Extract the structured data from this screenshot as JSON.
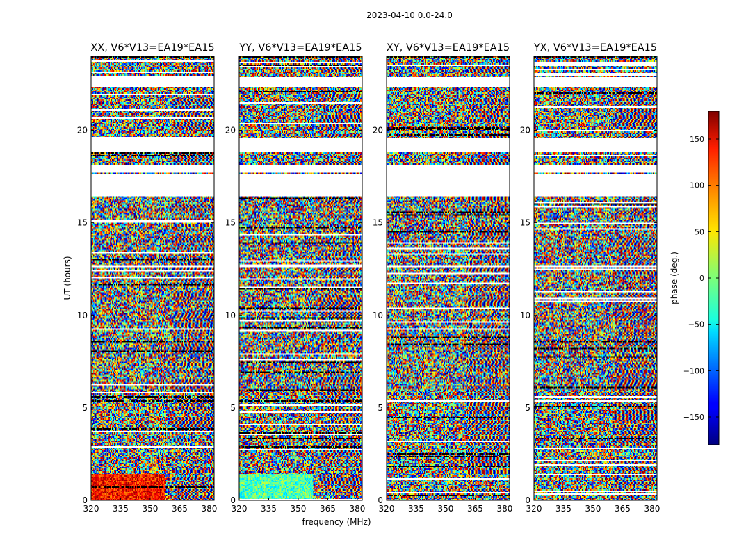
{
  "chart_data": {
    "type": "heatmap",
    "title": "2023-04-10 0.0-24.0",
    "xlabel": "frequency (MHz)",
    "ylabel": "UT (hours)",
    "colorbar_label": "phase (deg.)",
    "colormap": "jet",
    "x_range": [
      320,
      382.5
    ],
    "y_range": [
      0,
      24
    ],
    "x_ticks": [
      320,
      335,
      350,
      365,
      380
    ],
    "y_ticks": [
      0,
      5,
      10,
      15,
      20
    ],
    "c_range": [
      -180,
      180
    ],
    "c_ticks": [
      -150,
      -100,
      -50,
      0,
      50,
      100,
      150
    ],
    "c_tick_labels": [
      "−150",
      "−100",
      "−50",
      "0",
      "50",
      "100",
      "150"
    ],
    "grid": false,
    "panels": [
      {
        "title": "XX, V6*V13=EA19*EA15",
        "correlation": "XX"
      },
      {
        "title": "YY, V6*V13=EA19*EA15",
        "correlation": "YY"
      },
      {
        "title": "XY, V6*V13=EA19*EA15",
        "correlation": "XY"
      },
      {
        "title": "YX, V6*V13=EA19*EA15",
        "correlation": "YX"
      }
    ],
    "flagged_ut_intervals": [
      [
        22.35,
        22.85
      ],
      [
        18.8,
        19.55
      ],
      [
        17.7,
        18.15
      ],
      [
        16.45,
        17.6
      ]
    ],
    "colors": {
      "frame": "#000000",
      "background": "#ffffff"
    }
  }
}
